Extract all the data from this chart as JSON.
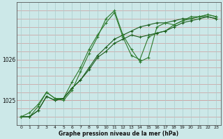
{
  "xlabel": "Graphe pression niveau de la mer (hPa)",
  "background_color": "#cce8e8",
  "grid_color_h": "#cc9999",
  "grid_color_v": "#aacccc",
  "line_color": "#1a5c1a",
  "line_color2": "#2d7a2d",
  "x_ticks": [
    0,
    1,
    2,
    3,
    4,
    5,
    6,
    7,
    8,
    9,
    10,
    11,
    12,
    13,
    14,
    15,
    16,
    17,
    18,
    19,
    20,
    21,
    22,
    23
  ],
  "y_ticks": [
    1025,
    1026
  ],
  "ylim": [
    1024.4,
    1027.4
  ],
  "xlim": [
    -0.5,
    23.5
  ],
  "series": [
    [
      1024.6,
      1024.6,
      1024.75,
      1025.1,
      1025.0,
      1025.05,
      1025.3,
      1025.5,
      1025.8,
      1026.1,
      1026.3,
      1026.5,
      1026.6,
      1026.7,
      1026.8,
      1026.85,
      1026.9,
      1026.9,
      1026.95,
      1027.0,
      1027.0,
      1027.05,
      1027.05,
      1027.0
    ],
    [
      1024.6,
      1024.6,
      1024.85,
      1025.2,
      1025.05,
      1025.05,
      1025.45,
      1025.8,
      1026.25,
      1026.6,
      1026.9,
      1027.15,
      1026.55,
      1026.1,
      1026.0,
      1026.55,
      1026.65,
      1026.7,
      1026.85,
      1026.95,
      1027.05,
      1027.05,
      1027.1,
      1027.05
    ],
    [
      1024.6,
      1024.6,
      1024.75,
      1025.1,
      1025.0,
      1025.05,
      1025.3,
      1025.5,
      1025.75,
      1026.05,
      1026.2,
      1026.4,
      1026.5,
      1026.6,
      1026.55,
      1026.6,
      1026.65,
      1026.7,
      1026.8,
      1026.9,
      1026.95,
      1027.0,
      1027.05,
      1027.0
    ],
    [
      1024.6,
      1024.7,
      1024.9,
      1025.2,
      1025.05,
      1025.0,
      1025.25,
      1025.7,
      1026.15,
      1026.55,
      1027.0,
      1027.2,
      1026.6,
      1026.25,
      1025.95,
      1026.05,
      1026.8,
      1026.9,
      1026.85,
      1026.95,
      1027.0,
      1027.05,
      1027.1,
      1027.05
    ]
  ]
}
